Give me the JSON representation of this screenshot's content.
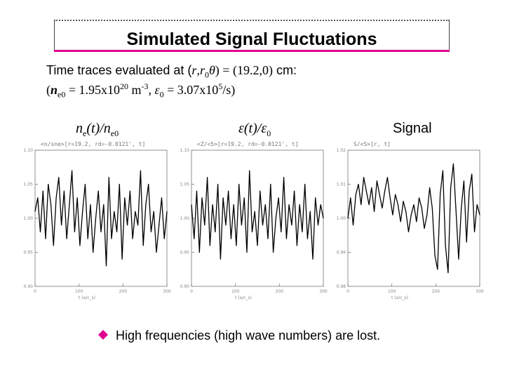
{
  "slide": {
    "title": "Simulated Signal Fluctuations",
    "line1_text": "Time traces evaluated at (",
    "line1_var_r": "r",
    "line1_comma": ",",
    "line1_var_r0": "r",
    "line1_sub0": "0",
    "line1_theta": "θ",
    "line1_eq": ") = ",
    "line1_vals": "(19.2,0)",
    "line1_unit": " cm:",
    "line2_open": "(",
    "line2_n": "n",
    "line2_e0": "e0",
    "line2_eq": " = 1.95x10",
    "line2_exp20": "20",
    "line2_m": " m",
    "line2_expm3": "-3",
    "line2_comma": ", ",
    "line2_eps": "ε",
    "line2_eps0": "0",
    "line2_eq2": " = 3.07x10",
    "line2_exp5": "5",
    "line2_close": "/s)",
    "bullet": "High frequencies (high wave numbers) are lost."
  },
  "labels": {
    "ne_n": "n",
    "ne_e": "e",
    "ne_t": "(t)/n",
    "ne_e0": "e0",
    "eps_e": "ε",
    "eps_t": "(t)/ε",
    "eps_0": "0",
    "signal": "Signal"
  },
  "colors": {
    "accent": "#e0008f",
    "trace": "#000000",
    "axis": "#777777"
  },
  "chart_data": [
    {
      "type": "line",
      "panel_header": "<n/sne>[r=19.2, rd=-0.0121', t]",
      "xlabel": "t (a/c_s)",
      "x_ticks": [
        0,
        100,
        200,
        300
      ],
      "y_ticks": [
        "0.90",
        "0.95",
        "1.00",
        "1.05",
        "1.10"
      ],
      "ylim": [
        0.9,
        1.1
      ],
      "xlim": [
        0,
        300
      ],
      "series": [
        {
          "x": [
            0,
            6,
            12,
            18,
            24,
            30,
            36,
            42,
            48,
            54,
            60,
            66,
            72,
            78,
            84,
            90,
            96,
            102,
            108,
            114,
            120,
            126,
            132,
            138,
            144,
            150,
            156,
            162,
            168,
            174,
            180,
            186,
            192,
            198,
            204,
            210,
            216,
            222,
            228,
            234,
            240,
            246,
            252,
            258,
            264,
            270,
            276,
            282,
            288,
            294,
            300
          ],
          "values": [
            1.01,
            1.03,
            0.98,
            1.04,
            0.97,
            1.05,
            1.02,
            0.96,
            1.03,
            1.06,
            0.99,
            1.04,
            0.97,
            1.02,
            1.07,
            0.98,
            1.03,
            0.96,
            1.01,
            1.05,
            0.97,
            1.02,
            0.95,
            1.0,
            1.04,
            0.98,
            1.02,
            0.93,
            1.06,
            0.97,
            1.01,
            0.98,
            1.05,
            0.94,
            1.03,
            0.99,
            1.04,
            0.97,
            1.01,
            0.99,
            1.07,
            0.96,
            1.02,
            1.05,
            0.98,
            1.01,
            0.95,
            0.99,
            1.03,
            0.97,
            1.01
          ]
        }
      ]
    },
    {
      "type": "line",
      "panel_header": "<Z/<5>[r=19.2, rd=-0.0121', t]",
      "xlabel": "t (a/c_s)",
      "x_ticks": [
        0,
        100,
        200,
        300
      ],
      "y_ticks": [
        "0.90",
        "0.95",
        "1.00",
        "1.05",
        "1.10"
      ],
      "ylim": [
        0.9,
        1.1
      ],
      "xlim": [
        0,
        300
      ],
      "series": [
        {
          "x": [
            0,
            6,
            12,
            18,
            24,
            30,
            36,
            42,
            48,
            54,
            60,
            66,
            72,
            78,
            84,
            90,
            96,
            102,
            108,
            114,
            120,
            126,
            132,
            138,
            144,
            150,
            156,
            162,
            168,
            174,
            180,
            186,
            192,
            198,
            204,
            210,
            216,
            222,
            228,
            234,
            240,
            246,
            252,
            258,
            264,
            270,
            276,
            282,
            288,
            294,
            300
          ],
          "values": [
            1.02,
            0.97,
            1.04,
            0.95,
            1.03,
            0.99,
            1.06,
            0.96,
            1.02,
            0.98,
            1.05,
            0.94,
            1.03,
            0.99,
            1.04,
            0.97,
            1.02,
            0.96,
            1.05,
            0.99,
            1.03,
            0.95,
            1.07,
            0.98,
            1.01,
            0.96,
            1.04,
            0.99,
            1.02,
            0.97,
            1.05,
            0.95,
            1.0,
            1.03,
            0.98,
            1.06,
            0.97,
            1.02,
            0.99,
            1.04,
            0.96,
            1.02,
            0.98,
            1.05,
            0.97,
            1.01,
            0.94,
            1.03,
            0.99,
            1.02,
            1.0
          ]
        }
      ]
    },
    {
      "type": "line",
      "panel_header": "S/<S>[r, t]",
      "xlabel": "t (a/c_s)",
      "x_ticks": [
        0,
        100,
        200,
        300
      ],
      "y_ticks": [
        "0.98",
        "0.99",
        "1.00",
        "1.01",
        "1.02"
      ],
      "ylim": [
        0.98,
        1.02
      ],
      "xlim": [
        0,
        300
      ],
      "series": [
        {
          "x": [
            0,
            6,
            12,
            18,
            24,
            30,
            36,
            42,
            48,
            54,
            60,
            66,
            72,
            78,
            84,
            90,
            96,
            102,
            108,
            114,
            120,
            126,
            132,
            138,
            144,
            150,
            156,
            162,
            168,
            174,
            180,
            186,
            192,
            198,
            204,
            210,
            216,
            222,
            228,
            234,
            240,
            246,
            252,
            258,
            264,
            270,
            276,
            282,
            288,
            294,
            300
          ],
          "values": [
            1.0,
            1.006,
            0.998,
            1.007,
            1.01,
            1.004,
            1.012,
            1.008,
            1.004,
            1.009,
            1.002,
            1.011,
            1.007,
            1.003,
            1.008,
            1.012,
            1.006,
            1.001,
            1.007,
            1.004,
            0.999,
            1.005,
            1.002,
            0.996,
            1.001,
            1.004,
            0.999,
            1.006,
            1.003,
            0.997,
            1.001,
            1.009,
            1.003,
            0.989,
            0.985,
            1.007,
            1.014,
            0.992,
            0.984,
            1.009,
            1.016,
            1.002,
            0.988,
            1.003,
            1.011,
            0.993,
            1.008,
            1.013,
            0.996,
            1.004,
            1.001
          ]
        }
      ]
    }
  ]
}
